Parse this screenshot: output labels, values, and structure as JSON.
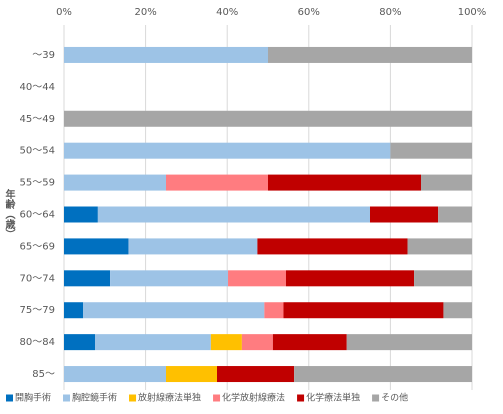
{
  "chart_data": {
    "type": "stacked-bar-horizontal",
    "y_axis_label": "年齢（歳）",
    "categories": [
      "～39",
      "40～44",
      "45～49",
      "50～54",
      "55～59",
      "60～64",
      "65～69",
      "70～74",
      "75～79",
      "80～84",
      "85～"
    ],
    "series": [
      {
        "name": "開胸手術",
        "color": "#0070c0",
        "values": [
          0,
          0,
          0,
          0,
          0,
          8.3,
          15.8,
          11.3,
          4.7,
          7.6,
          0
        ]
      },
      {
        "name": "胸腔鏡手術",
        "color": "#9dc3e6",
        "values": [
          50,
          0,
          0,
          80,
          25,
          66.7,
          31.6,
          28.9,
          44.4,
          28.4,
          25
        ]
      },
      {
        "name": "放射線療法単独",
        "color": "#ffc000",
        "values": [
          0,
          0,
          0,
          0,
          0,
          0,
          0,
          0,
          0,
          7.6,
          12.5
        ]
      },
      {
        "name": "化学放射線療法",
        "color": "#ff7c80",
        "values": [
          0,
          0,
          0,
          0,
          25,
          0,
          0,
          14.2,
          4.7,
          7.6,
          0
        ]
      },
      {
        "name": "化学療法単独",
        "color": "#c00000",
        "values": [
          0,
          0,
          0,
          0,
          37.5,
          16.7,
          36.8,
          31.4,
          39.2,
          18.1,
          18.9
        ]
      },
      {
        "name": "その他",
        "color": "#a6a6a6",
        "values": [
          50,
          0,
          100,
          20,
          12.5,
          8.3,
          15.8,
          14.2,
          7.0,
          30.7,
          43.6
        ]
      }
    ],
    "xlim": [
      0,
      100
    ],
    "xticks": [
      {
        "value": 0,
        "label": "0%"
      },
      {
        "value": 20,
        "label": "20%"
      },
      {
        "value": 40,
        "label": "40%"
      },
      {
        "value": 60,
        "label": "60%"
      },
      {
        "value": 80,
        "label": "80%"
      },
      {
        "value": 100,
        "label": "100%"
      }
    ],
    "grid": true,
    "legend": "bottom"
  }
}
